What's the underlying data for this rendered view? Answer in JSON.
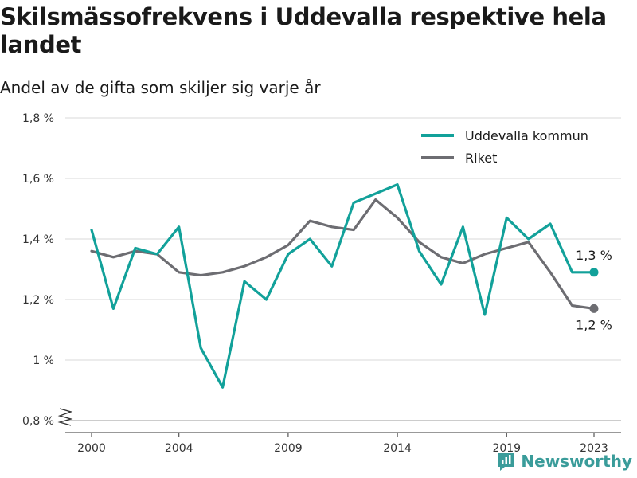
{
  "header": {
    "title": "Skilsmässofrekvens i Uddevalla respektive hela landet",
    "subtitle": "Andel av de gifta som skiljer sig varje år"
  },
  "brand": {
    "name": "Newsworthy",
    "icon": "newsworthy-logo-icon"
  },
  "colors": {
    "uddevalla": "#12a19a",
    "riket": "#6d6d72",
    "grid": "#d9d9d9",
    "axis": "#333333"
  },
  "chart_data": {
    "type": "line",
    "title": "Skilsmässofrekvens i Uddevalla respektive hela landet",
    "subtitle": "Andel av de gifta som skiljer sig varje år",
    "x": [
      2000,
      2001,
      2002,
      2003,
      2004,
      2005,
      2006,
      2007,
      2008,
      2009,
      2010,
      2011,
      2012,
      2013,
      2014,
      2015,
      2016,
      2017,
      2018,
      2019,
      2020,
      2021,
      2022,
      2023
    ],
    "x_ticks": [
      2000,
      2004,
      2009,
      2014,
      2019,
      2023
    ],
    "x_tick_labels": [
      "2000",
      "2004",
      "2009",
      "2014",
      "2019",
      "2023"
    ],
    "ylim": [
      0.8,
      1.8
    ],
    "y_ticks": [
      0.8,
      1.0,
      1.2,
      1.4,
      1.6,
      1.8
    ],
    "y_tick_labels": [
      "0,8 %",
      "1 %",
      "1,2 %",
      "1,4 %",
      "1,6 %",
      "1,8 %"
    ],
    "y_axis_break": true,
    "grid": true,
    "legend_position": "top-right",
    "series": [
      {
        "name": "Uddevalla kommun",
        "color": "#12a19a",
        "values": [
          1.43,
          1.17,
          1.37,
          1.35,
          1.44,
          1.04,
          0.91,
          1.26,
          1.2,
          1.35,
          1.4,
          1.31,
          1.52,
          1.55,
          1.58,
          1.36,
          1.25,
          1.44,
          1.15,
          1.47,
          1.4,
          1.45,
          1.29,
          1.29
        ],
        "end_label": "1,3 %"
      },
      {
        "name": "Riket",
        "color": "#6d6d72",
        "values": [
          1.36,
          1.34,
          1.36,
          1.35,
          1.29,
          1.28,
          1.29,
          1.31,
          1.34,
          1.38,
          1.46,
          1.44,
          1.43,
          1.53,
          1.47,
          1.39,
          1.34,
          1.32,
          1.35,
          1.37,
          1.39,
          1.29,
          1.18,
          1.17
        ],
        "end_label": "1,2 %"
      }
    ]
  }
}
